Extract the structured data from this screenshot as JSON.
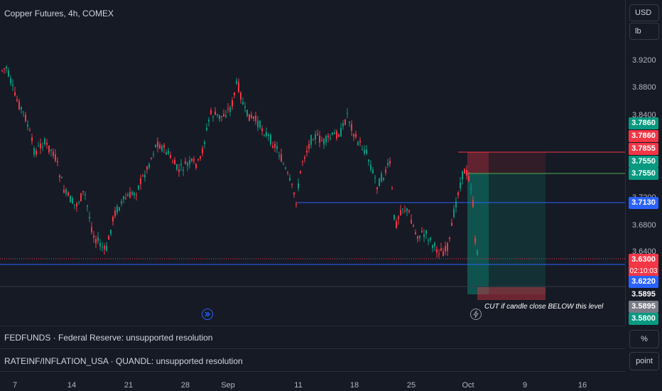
{
  "header": {
    "title": "Copper Futures, 4h, COMEX"
  },
  "units": {
    "currency": "USD",
    "unit": "lb"
  },
  "price_axis": {
    "ticks": [
      "3.9200",
      "3.8800",
      "3.8400",
      "3.7200",
      "3.6800",
      "3.6400"
    ],
    "tags": [
      {
        "text": "3.7860",
        "color": "#089981"
      },
      {
        "text": "3.7860",
        "color": "#f23645"
      },
      {
        "text": "3.7855",
        "color": "#f23645"
      },
      {
        "text": "3.7550",
        "color": "#089981"
      },
      {
        "text": "3.7550",
        "color": "#089981"
      },
      {
        "text": "3.7130",
        "color": "#2962ff"
      },
      {
        "text": "3.6300",
        "color": "#f23645"
      },
      {
        "text": "02:10:03",
        "color": "#f23645"
      },
      {
        "text": "3.6220",
        "color": "#2962ff"
      },
      {
        "text": "3.5895",
        "color": "#161a25"
      },
      {
        "text": "3.5895",
        "color": "#787b86"
      },
      {
        "text": "3.5800",
        "color": "#089981"
      }
    ]
  },
  "annotation": "CUT if candle close BELOW this level",
  "indicators": [
    {
      "label": "FEDFUNDS · Federal Reserve: unsupported resolution",
      "button": "%"
    },
    {
      "label": "RATEINF/INFLATION_USA · QUANDL: unsupported resolution",
      "button": "point"
    }
  ],
  "time_axis": {
    "labels": [
      "7",
      "14",
      "21",
      "28",
      "Sep",
      "11",
      "18",
      "25",
      "Oct",
      "9",
      "16"
    ]
  },
  "icons": {
    "event_left": "forward-arrow-circle-icon",
    "event_right": "lightning-circle-icon"
  },
  "colors": {
    "up": "#089981",
    "down": "#f23645",
    "blue": "#2962ff",
    "bg": "#161a25"
  }
}
